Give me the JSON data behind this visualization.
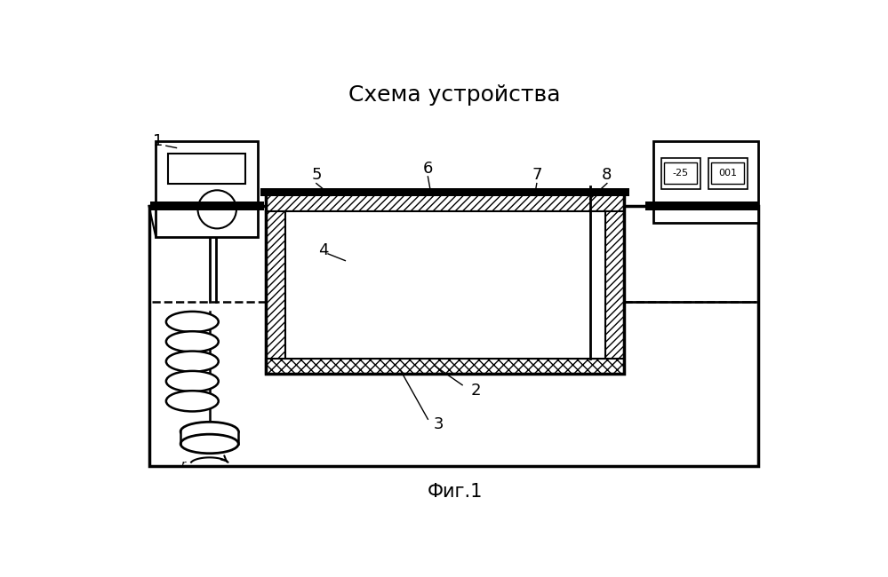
{
  "title": "Схема устройства",
  "caption": "Фиг.1",
  "bg_color": "#ffffff",
  "line_color": "#000000",
  "fig_width": 9.99,
  "fig_height": 6.5,
  "dpi": 100
}
